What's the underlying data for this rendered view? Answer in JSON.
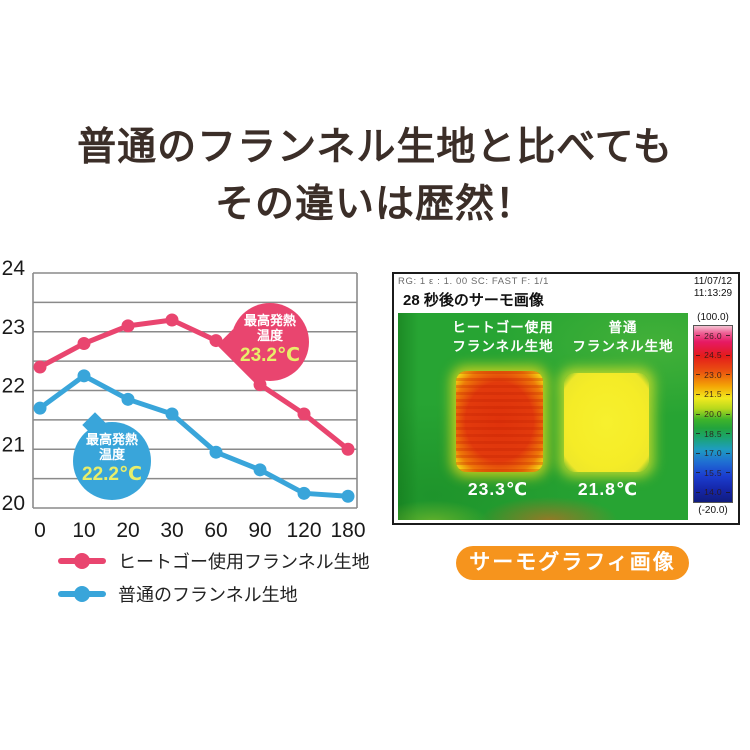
{
  "title": {
    "line1": "普通のフランネル生地と比べても",
    "line2": "その違いは歴然！"
  },
  "colors": {
    "title": "#3b2e28",
    "grid": "#8a8a8a",
    "axis_label": "#1a1a1a",
    "pink": "#e9456f",
    "blue": "#39a5da",
    "bubble_temp_text": "#e8ee6a",
    "badge_bg": "#f6941d",
    "thermal_green": "#27a433"
  },
  "chart_data": {
    "type": "line",
    "title": "",
    "xlabel": "",
    "ylabel": "",
    "categories": [
      "0",
      "10",
      "20",
      "30",
      "60",
      "90",
      "120",
      "180"
    ],
    "ylim": [
      20,
      24
    ],
    "y_ticks": [
      20,
      21,
      22,
      23,
      24
    ],
    "grid_step": 0.5,
    "grid": "on",
    "legend_position": "bottom-left",
    "series": [
      {
        "name": "ヒートゴー使用フランネル生地",
        "color": "#e9456f",
        "values": [
          22.4,
          22.8,
          23.1,
          23.2,
          22.85,
          22.1,
          21.6,
          21.0
        ]
      },
      {
        "name": "普通のフランネル生地",
        "color": "#39a5da",
        "values": [
          21.7,
          22.25,
          21.85,
          21.6,
          20.95,
          20.65,
          20.25,
          20.2
        ]
      }
    ],
    "annotations": [
      {
        "target_series": "ヒートゴー使用フランネル生地",
        "label_line1": "最高発熱",
        "label_line2": "温度",
        "value": "23.2℃",
        "color": "#e9456f"
      },
      {
        "target_series": "普通のフランネル生地",
        "label_line1": "最高発熱",
        "label_line2": "温度",
        "value": "22.2℃",
        "color": "#39a5da"
      }
    ]
  },
  "thermal": {
    "meta": "RG: 1   ε : 1. 00   SC: FAST   F: 1/1",
    "date": "11/07/12",
    "time": "11:13:29",
    "caption": "28 秒後のサーモ画像",
    "samples": [
      {
        "label_line1": "ヒートゴー使用",
        "label_line2": "フランネル生地",
        "temp": "23.3℃"
      },
      {
        "label_line1": "普通",
        "label_line2": "フランネル生地",
        "temp": "21.8℃"
      }
    ],
    "scale": {
      "over_label": "(100.0)",
      "under_label": "(-20.0)",
      "ticks": [
        "26.0",
        "24.5",
        "23.0",
        "21.5",
        "20.0",
        "18.5",
        "17.0",
        "15.5",
        "14.0"
      ]
    }
  },
  "badge": {
    "label": "サーモグラフィ画像"
  }
}
